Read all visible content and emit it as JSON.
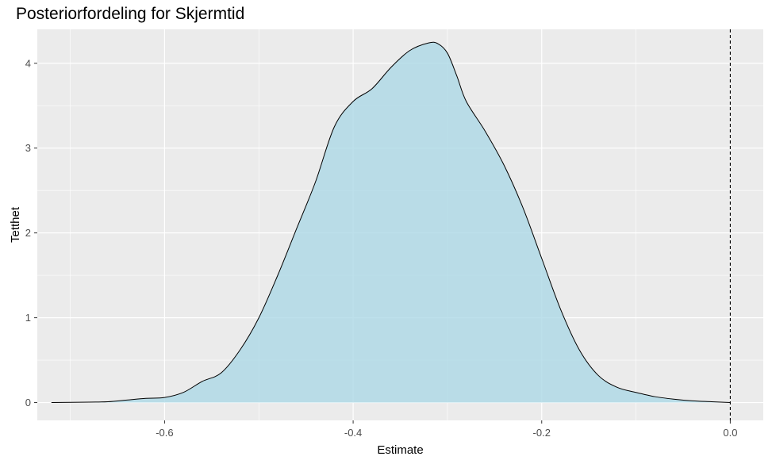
{
  "chart_data": {
    "type": "area",
    "title": "Posteriorfordeling for Skjermtid",
    "xlabel": "Estimate",
    "ylabel": "Tetthet",
    "xlim": [
      -0.735,
      0.035
    ],
    "ylim": [
      -0.21,
      4.4
    ],
    "x_ticks": [
      -0.6,
      -0.4,
      -0.2,
      0.0
    ],
    "x_tick_labels": [
      "-0.6",
      "-0.4",
      "-0.2",
      "0.0"
    ],
    "y_ticks": [
      0,
      1,
      2,
      3,
      4
    ],
    "y_tick_labels": [
      "0",
      "1",
      "2",
      "3",
      "4"
    ],
    "grid": true,
    "legend": "none",
    "reference_line": {
      "x": 0.0,
      "style": "dashed",
      "color": "#000000"
    },
    "colors": {
      "panel": "#ebebeb",
      "grid": "#ffffff",
      "fill": "#add8e6",
      "line": "#000000",
      "tick_text": "#4d4d4d"
    },
    "series": [
      {
        "x": [
          -0.72,
          -0.68,
          -0.66,
          -0.64,
          -0.62,
          -0.6,
          -0.58,
          -0.56,
          -0.54,
          -0.52,
          -0.5,
          -0.48,
          -0.46,
          -0.44,
          -0.42,
          -0.4,
          -0.38,
          -0.36,
          -0.34,
          -0.32,
          -0.31,
          -0.3,
          -0.29,
          -0.28,
          -0.26,
          -0.24,
          -0.22,
          -0.2,
          -0.18,
          -0.16,
          -0.14,
          -0.12,
          -0.1,
          -0.08,
          -0.06,
          -0.04,
          -0.02,
          0.0
        ],
        "y": [
          0.0,
          0.005,
          0.01,
          0.03,
          0.05,
          0.06,
          0.12,
          0.25,
          0.35,
          0.62,
          1.0,
          1.5,
          2.05,
          2.6,
          3.25,
          3.55,
          3.7,
          3.95,
          4.15,
          4.24,
          4.23,
          4.12,
          3.85,
          3.55,
          3.2,
          2.8,
          2.3,
          1.7,
          1.1,
          0.62,
          0.32,
          0.18,
          0.12,
          0.07,
          0.04,
          0.02,
          0.01,
          0.0
        ]
      }
    ]
  }
}
